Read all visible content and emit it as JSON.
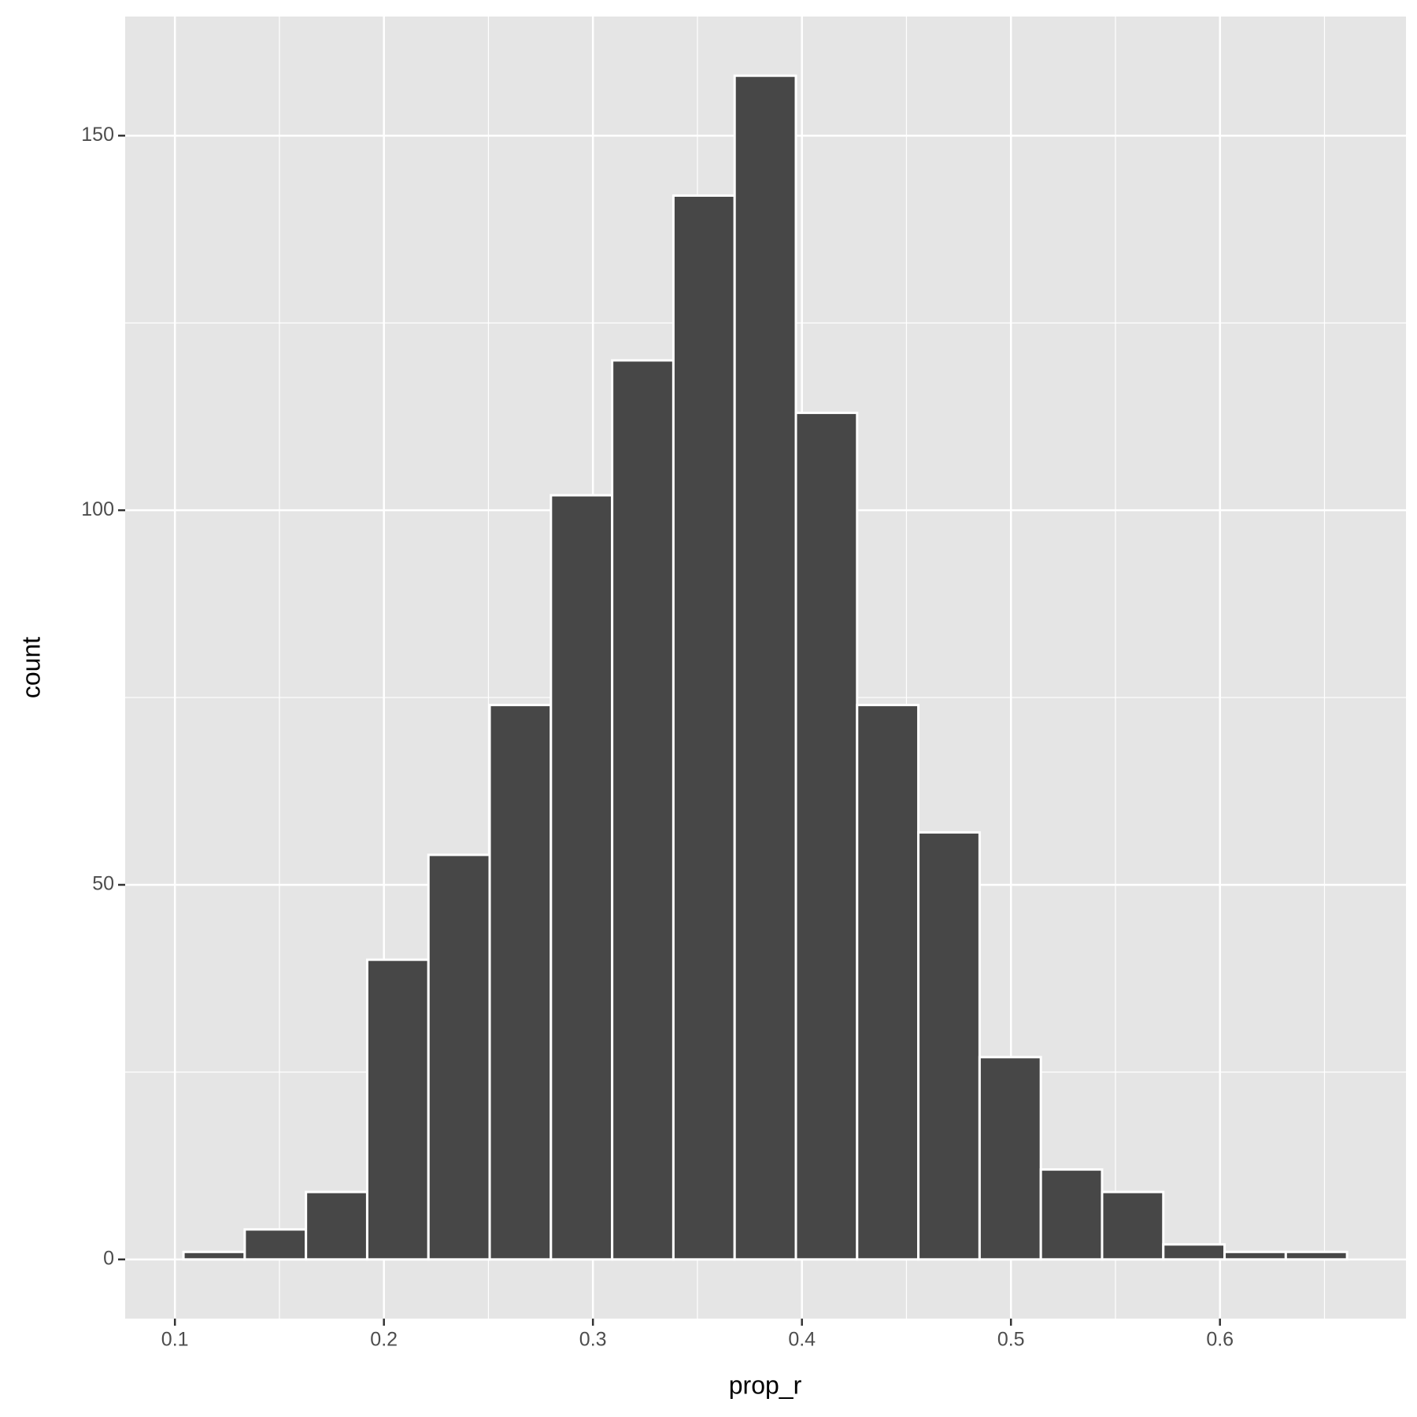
{
  "chart_data": {
    "type": "histogram",
    "x_label": "prop_r",
    "y_label": "count",
    "bins": [
      0.1041,
      0.1334,
      0.1627,
      0.192,
      0.2213,
      0.2506,
      0.2799,
      0.3092,
      0.3385,
      0.3678,
      0.3971,
      0.4264,
      0.4557,
      0.485,
      0.5143,
      0.5436,
      0.5729,
      0.6022,
      0.6315,
      0.6608
    ],
    "values": [
      1,
      4,
      9,
      40,
      54,
      74,
      102,
      120,
      142,
      158,
      113,
      74,
      57,
      27,
      12,
      9,
      2,
      1,
      1
    ],
    "color": "#474747",
    "edge_color": "#ffffff",
    "xlim": [
      0.0762,
      0.689
    ],
    "ylim": [
      -7.9,
      165.9
    ],
    "xticks": [
      0.1,
      0.2,
      0.3,
      0.4,
      0.5,
      0.6
    ],
    "yticks": [
      0,
      50,
      100,
      150
    ],
    "xminor": [
      0.15,
      0.25,
      0.35,
      0.45,
      0.55,
      0.65
    ],
    "yminor": [
      25,
      75,
      125
    ],
    "grid": true,
    "panel_color": "#e5e5e5",
    "grid_color": "#ffffff"
  }
}
